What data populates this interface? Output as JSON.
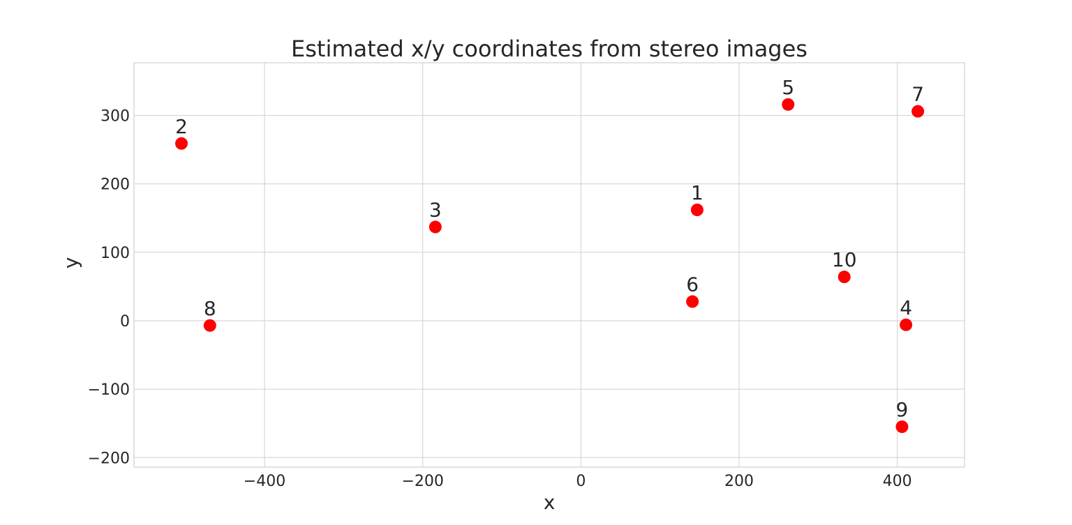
{
  "chart_data": {
    "type": "scatter",
    "title": "Estimated x/y coordinates from stereo images",
    "xlabel": "x",
    "ylabel": "y",
    "xlim": [
      -565,
      485
    ],
    "ylim": [
      -214,
      377
    ],
    "xticks": [
      -400,
      -200,
      0,
      200,
      400
    ],
    "yticks": [
      -200,
      -100,
      0,
      100,
      200,
      300
    ],
    "xtick_labels": [
      "−400",
      "−200",
      "0",
      "200",
      "400"
    ],
    "ytick_labels": [
      "−200",
      "−100",
      "0",
      "100",
      "200",
      "300"
    ],
    "grid": true,
    "marker_color": "#ff0000",
    "points": [
      {
        "label": "1",
        "x": 147,
        "y": 162
      },
      {
        "label": "2",
        "x": -505,
        "y": 259
      },
      {
        "label": "3",
        "x": -184,
        "y": 137
      },
      {
        "label": "4",
        "x": 411,
        "y": -6
      },
      {
        "label": "5",
        "x": 262,
        "y": 316
      },
      {
        "label": "6",
        "x": 141,
        "y": 28
      },
      {
        "label": "7",
        "x": 426,
        "y": 306
      },
      {
        "label": "8",
        "x": -469,
        "y": -7
      },
      {
        "label": "9",
        "x": 406,
        "y": -155
      },
      {
        "label": "10",
        "x": 333,
        "y": 64
      }
    ]
  }
}
